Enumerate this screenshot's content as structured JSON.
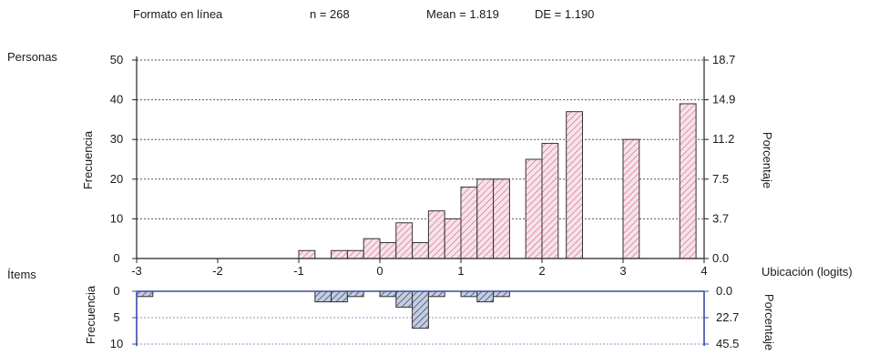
{
  "header": {
    "format": "Formato en línea",
    "n": "n = 268",
    "mean": "Mean = 1.819",
    "sd": "DE = 1.190"
  },
  "colors": {
    "person_fill": "#f7e3ea",
    "person_hatch": "#d5708f",
    "item_fill": "#c4cede",
    "item_hatch": "#2e3e6e",
    "item_axis": "#3b4aa8",
    "bar_outline": "#333333"
  },
  "chart_data": [
    {
      "type": "bar",
      "panel": "persons",
      "title": "Personas",
      "ylabel": "Frecuencia",
      "y2label": "Porcentaje",
      "ylim": [
        0,
        50
      ],
      "xlim": [
        -3,
        4
      ],
      "yticks": [
        "0",
        "10",
        "20",
        "30",
        "40",
        "50"
      ],
      "y2ticks": [
        "0.0",
        "3.7",
        "7.5",
        "11.2",
        "14.9",
        "18.7"
      ],
      "grid": true,
      "bar_width": 0.2,
      "x": [
        -1.0,
        -0.6,
        -0.4,
        -0.2,
        0.0,
        0.2,
        0.4,
        0.6,
        0.8,
        1.0,
        1.2,
        1.4,
        1.8,
        2.0,
        2.3,
        3.0,
        3.7
      ],
      "values": [
        2,
        2,
        2,
        5,
        4,
        9,
        4,
        12,
        10,
        18,
        20,
        20,
        25,
        29,
        37,
        30,
        39
      ]
    },
    {
      "type": "bar",
      "panel": "items",
      "title": "Ítems",
      "ylabel": "Frecuencia",
      "y2label": "Porcentaje",
      "xlabel": "Ubicación (logits)",
      "ylim": [
        0,
        10
      ],
      "inverted": true,
      "xlim": [
        -3,
        4
      ],
      "xticks": [
        "-3",
        "-2",
        "-1",
        "0",
        "1",
        "2",
        "3",
        "4"
      ],
      "yticks": [
        "0",
        "5",
        "10"
      ],
      "y2ticks": [
        "0.0",
        "22.7",
        "45.5"
      ],
      "grid": true,
      "bar_width": 0.2,
      "x": [
        -3.0,
        -0.8,
        -0.6,
        -0.4,
        0.0,
        0.2,
        0.4,
        0.6,
        1.0,
        1.2,
        1.4
      ],
      "values": [
        1,
        2,
        2,
        1,
        1,
        3,
        7,
        1,
        1,
        2,
        1
      ]
    }
  ]
}
